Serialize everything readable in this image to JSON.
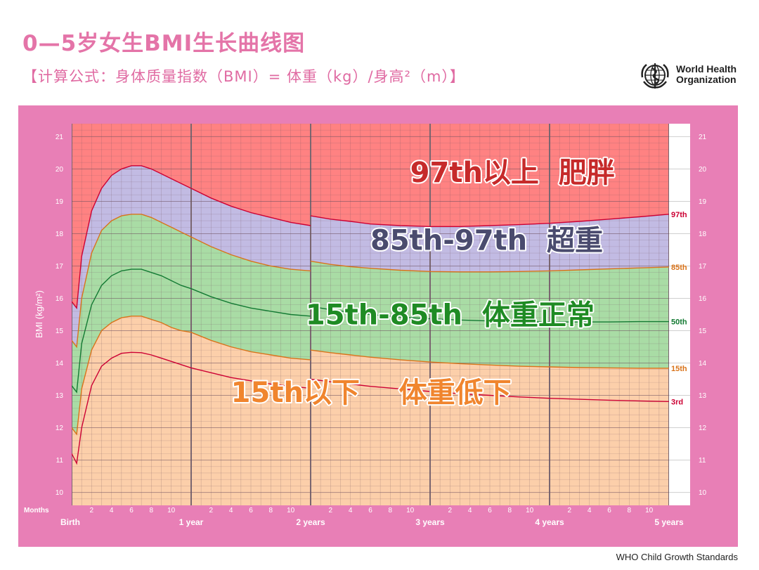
{
  "header": {
    "title": "0—5岁女生BMI生长曲线图",
    "formula": "【计算公式：身体质量指数（BMI）= 体重（kg）/身高²（m）】"
  },
  "logo": {
    "line1": "World Health",
    "line2": "Organization",
    "icon": "who-emblem-icon"
  },
  "footer": {
    "source": "WHO Child Growth Standards"
  },
  "colors": {
    "panel": "#e87fb6",
    "obese": "#ff8282",
    "overweight": "#c2bbe3",
    "normal": "#a9dca5",
    "under": "#fccfaa",
    "p97": "#cc0033",
    "p85": "#d9731a",
    "p50": "#137a33",
    "p15": "#d9731a",
    "p3": "#cc0033",
    "label97": "#c62a2a",
    "label85": "#4a4b6e",
    "labelNormal": "#1f8b24",
    "label15": "#f0852e"
  },
  "chart_data": {
    "type": "line",
    "title": "0—5岁女生BMI生长曲线图",
    "xlabel": "Months",
    "ylabel": "BMI (kg/m²)",
    "xlim": [
      0,
      60
    ],
    "ylim": [
      9.6,
      21.4
    ],
    "grid": true,
    "y_ticks": [
      10,
      11,
      12,
      13,
      14,
      15,
      16,
      17,
      18,
      19,
      20,
      21
    ],
    "month_ticks": [
      "2",
      "4",
      "6",
      "8",
      "10",
      "2",
      "4",
      "6",
      "8",
      "10",
      "2",
      "4",
      "6",
      "8",
      "10",
      "2",
      "4",
      "6",
      "8",
      "10",
      "2",
      "4",
      "6",
      "8",
      "10"
    ],
    "year_labels": [
      "Birth",
      "1 year",
      "2 years",
      "3 years",
      "4 years",
      "5 years"
    ],
    "x_axis_label": "Months",
    "series": [
      {
        "name": "97th",
        "key": "p97",
        "x": [
          0,
          0.5,
          1,
          2,
          3,
          4,
          5,
          6,
          7,
          8,
          9,
          10,
          11,
          12,
          14,
          16,
          18,
          20,
          22,
          24,
          24,
          26,
          28,
          30,
          33,
          36,
          39,
          42,
          45,
          48,
          51,
          54,
          57,
          60
        ],
        "y": [
          15.9,
          15.7,
          17.3,
          18.7,
          19.4,
          19.8,
          20.0,
          20.1,
          20.1,
          20.0,
          19.85,
          19.7,
          19.55,
          19.4,
          19.1,
          18.85,
          18.65,
          18.5,
          18.35,
          18.25,
          18.55,
          18.45,
          18.38,
          18.3,
          18.25,
          18.22,
          18.22,
          18.25,
          18.28,
          18.32,
          18.38,
          18.45,
          18.52,
          18.6
        ]
      },
      {
        "name": "85th",
        "key": "p85",
        "x": [
          0,
          0.5,
          1,
          2,
          3,
          4,
          5,
          6,
          7,
          8,
          9,
          10,
          11,
          12,
          14,
          16,
          18,
          20,
          22,
          24,
          24,
          26,
          28,
          30,
          33,
          36,
          39,
          42,
          45,
          48,
          51,
          54,
          57,
          60
        ],
        "y": [
          14.7,
          14.5,
          16.0,
          17.4,
          18.1,
          18.4,
          18.55,
          18.6,
          18.6,
          18.5,
          18.35,
          18.2,
          18.05,
          17.9,
          17.6,
          17.35,
          17.15,
          17.0,
          16.9,
          16.85,
          17.15,
          17.05,
          16.98,
          16.93,
          16.87,
          16.83,
          16.82,
          16.82,
          16.83,
          16.85,
          16.88,
          16.91,
          16.94,
          16.97
        ]
      },
      {
        "name": "50th",
        "key": "p50",
        "x": [
          0,
          0.5,
          1,
          2,
          3,
          4,
          5,
          6,
          7,
          8,
          9,
          10,
          11,
          12,
          14,
          16,
          18,
          20,
          22,
          24,
          24,
          26,
          28,
          30,
          33,
          36,
          39,
          42,
          45,
          48,
          51,
          54,
          57,
          60
        ],
        "y": [
          13.3,
          13.1,
          14.6,
          15.8,
          16.4,
          16.7,
          16.85,
          16.9,
          16.9,
          16.8,
          16.7,
          16.55,
          16.4,
          16.3,
          16.05,
          15.85,
          15.7,
          15.6,
          15.5,
          15.45,
          15.75,
          15.65,
          15.57,
          15.5,
          15.42,
          15.37,
          15.33,
          15.3,
          15.28,
          15.27,
          15.27,
          15.27,
          15.28,
          15.28
        ]
      },
      {
        "name": "15th",
        "key": "p15",
        "x": [
          0,
          0.5,
          1,
          2,
          3,
          4,
          5,
          6,
          7,
          8,
          9,
          10,
          11,
          12,
          14,
          16,
          18,
          20,
          22,
          24,
          24,
          26,
          28,
          30,
          33,
          36,
          39,
          42,
          45,
          48,
          51,
          54,
          57,
          60
        ],
        "y": [
          12.0,
          11.8,
          13.2,
          14.4,
          15.0,
          15.25,
          15.4,
          15.45,
          15.45,
          15.35,
          15.25,
          15.1,
          15.0,
          14.95,
          14.7,
          14.5,
          14.35,
          14.25,
          14.15,
          14.1,
          14.4,
          14.32,
          14.25,
          14.18,
          14.1,
          14.03,
          13.98,
          13.94,
          13.9,
          13.88,
          13.86,
          13.85,
          13.84,
          13.84
        ]
      },
      {
        "name": "3rd",
        "key": "p3",
        "x": [
          0,
          0.5,
          1,
          2,
          3,
          4,
          5,
          6,
          7,
          8,
          9,
          10,
          11,
          12,
          14,
          16,
          18,
          20,
          22,
          24,
          24,
          26,
          28,
          30,
          33,
          36,
          39,
          42,
          45,
          48,
          51,
          54,
          57,
          60
        ],
        "y": [
          11.2,
          10.9,
          12.0,
          13.3,
          13.9,
          14.15,
          14.3,
          14.33,
          14.32,
          14.25,
          14.15,
          14.05,
          13.95,
          13.85,
          13.7,
          13.55,
          13.45,
          13.35,
          13.28,
          13.22,
          13.5,
          13.42,
          13.35,
          13.28,
          13.2,
          13.12,
          13.05,
          13.0,
          12.95,
          12.91,
          12.88,
          12.85,
          12.83,
          12.81
        ]
      }
    ],
    "zone_labels": [
      {
        "text": "97th以上  肥胖",
        "colorKey": "label97",
        "x": 34,
        "y": 19.9
      },
      {
        "text": "85th-97th  超重",
        "colorKey": "label85",
        "x": 30,
        "y": 17.8
      },
      {
        "text": "15th-85th  体重正常",
        "colorKey": "labelNormal",
        "x": 23.5,
        "y": 15.5
      },
      {
        "text": "15th以下    体重低下",
        "colorKey": "label15",
        "x": 16,
        "y": 13.1
      }
    ]
  }
}
